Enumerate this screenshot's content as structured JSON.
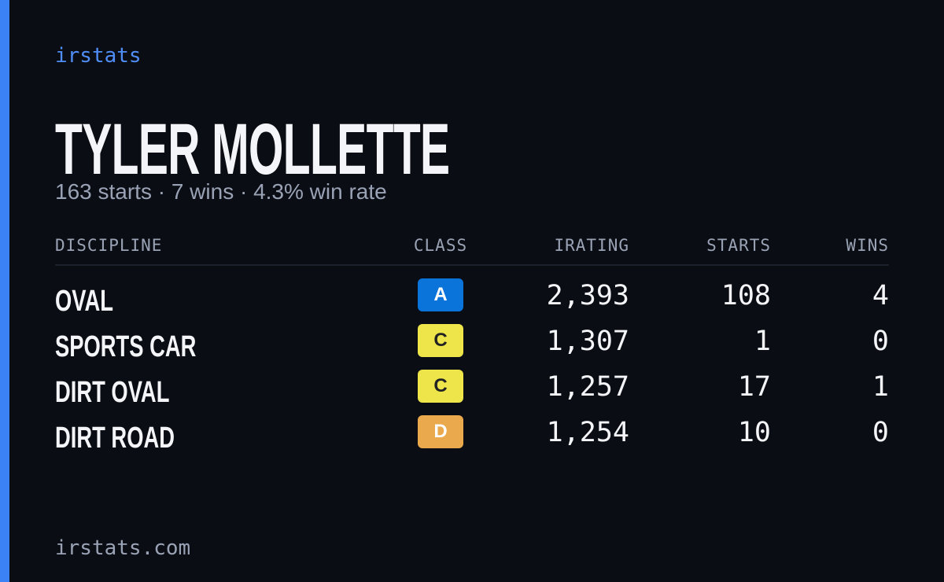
{
  "brand": "irstats",
  "driver": {
    "name": "TYLER MOLLETTE",
    "summary": "163 starts · 7 wins · 4.3% win rate"
  },
  "table": {
    "headers": [
      "DISCIPLINE",
      "CLASS",
      "IRATING",
      "STARTS",
      "WINS"
    ],
    "rows": [
      {
        "discipline": "OVAL",
        "class": "A",
        "class_color": "#0a74da",
        "class_text_color": "#ffffff",
        "irating": "2,393",
        "starts": "108",
        "wins": "4"
      },
      {
        "discipline": "SPORTS CAR",
        "class": "C",
        "class_color": "#ede54a",
        "class_text_color": "#222222",
        "irating": "1,307",
        "starts": "1",
        "wins": "0"
      },
      {
        "discipline": "DIRT OVAL",
        "class": "C",
        "class_color": "#ede54a",
        "class_text_color": "#222222",
        "irating": "1,257",
        "starts": "17",
        "wins": "1"
      },
      {
        "discipline": "DIRT ROAD",
        "class": "D",
        "class_color": "#e9a94c",
        "class_text_color": "#ffffff",
        "irating": "1,254",
        "starts": "10",
        "wins": "0"
      }
    ]
  },
  "footer": "irstats.com"
}
